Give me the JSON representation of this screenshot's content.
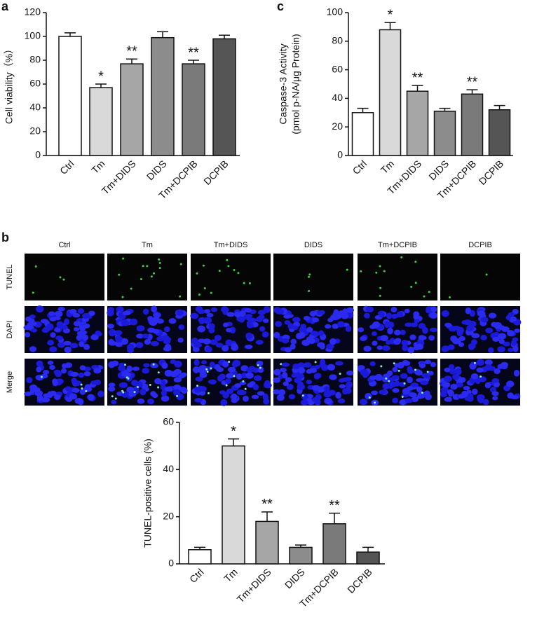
{
  "panel_labels": [
    "a",
    "b",
    "c"
  ],
  "micrographs": {
    "columns": [
      "Ctrl",
      "Tm",
      "Tm+DIDS",
      "DIDS",
      "Tm+DCPIB",
      "DCPIB"
    ],
    "rows": [
      "TUNEL",
      "DAPI",
      "Merge"
    ]
  },
  "chart_data": [
    {
      "type": "bar",
      "ylabel": [
        "Cell viability（%）"
      ],
      "categories": [
        "Ctrl",
        "Tm",
        "Tm+DIDS",
        "DIDS",
        "Tm+DCPIB",
        "DCPIB"
      ],
      "values": [
        100,
        57,
        77,
        99,
        77,
        98
      ],
      "errors": [
        3,
        3,
        4,
        5,
        3,
        3
      ],
      "significance": [
        null,
        "*",
        "**",
        null,
        "**",
        null
      ],
      "colors": [
        "#ffffff",
        "#d9d9d9",
        "#a6a6a6",
        "#8c8c8c",
        "#7a7a7a",
        "#555555"
      ],
      "ylim": [
        0,
        120
      ],
      "yticks": [
        0,
        20,
        40,
        60,
        80,
        100,
        120
      ]
    },
    {
      "type": "bar",
      "ylabel": [
        "TUNEL-positive cells (%)"
      ],
      "categories": [
        "Ctrl",
        "Tm",
        "Tm+DIDS",
        "DIDS",
        "Tm+DCPIB",
        "DCPIB"
      ],
      "values": [
        6,
        50,
        18,
        7,
        17,
        5
      ],
      "errors": [
        1,
        3,
        4,
        1,
        4.5,
        2
      ],
      "significance": [
        null,
        "*",
        "**",
        null,
        "**",
        null
      ],
      "colors": [
        "#ffffff",
        "#d9d9d9",
        "#a6a6a6",
        "#8c8c8c",
        "#7a7a7a",
        "#555555"
      ],
      "ylim": [
        0,
        60
      ],
      "yticks": [
        0,
        20,
        40,
        60
      ]
    },
    {
      "type": "bar",
      "ylabel": [
        "Caspase-3 Activity",
        "(pmol p-NA/μg Protein)"
      ],
      "categories": [
        "Ctrl",
        "Tm",
        "Tm+DIDS",
        "DIDS",
        "Tm+DCPIB",
        "DCPIB"
      ],
      "values": [
        30,
        88,
        45,
        31,
        43,
        32
      ],
      "errors": [
        3,
        5,
        4,
        2,
        3,
        3
      ],
      "significance": [
        null,
        "*",
        "**",
        null,
        "**",
        null
      ],
      "colors": [
        "#ffffff",
        "#d9d9d9",
        "#a6a6a6",
        "#8c8c8c",
        "#7a7a7a",
        "#555555"
      ],
      "ylim": [
        0,
        100
      ],
      "yticks": [
        0,
        20,
        40,
        60,
        80,
        100
      ]
    }
  ]
}
